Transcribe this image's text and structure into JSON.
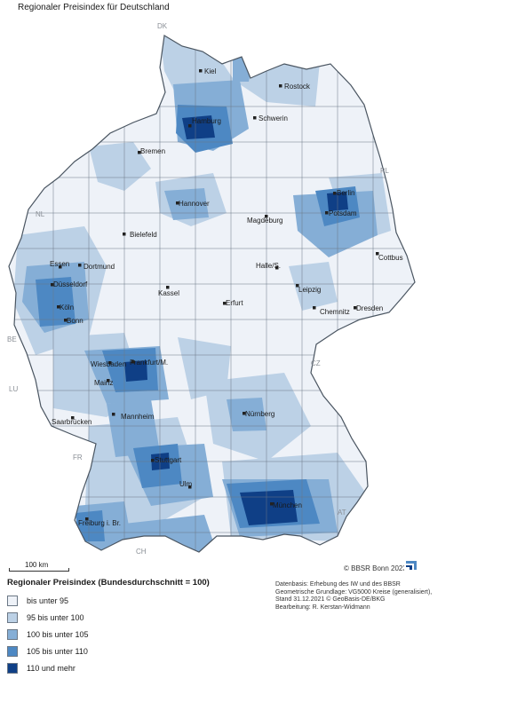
{
  "title": "Regionaler Preisindex für Deutschland",
  "colors": {
    "c1": "#eef2f8",
    "c2": "#bcd1e6",
    "c3": "#85aed6",
    "c4": "#4d88c3",
    "c5": "#0f3f86",
    "border": "#6b7785",
    "neighbor": "#8a8f96"
  },
  "countries": [
    "DK",
    "PL",
    "NL",
    "BE",
    "LU",
    "CZ",
    "FR",
    "AT",
    "CH"
  ],
  "cities": [
    "Kiel",
    "Rostock",
    "Hamburg",
    "Schwerin",
    "Bremen",
    "Berlin",
    "Hannover",
    "Potsdam",
    "Magdeburg",
    "Bielefeld",
    "Essen",
    "Dortmund",
    "Halle/S.",
    "Cottbus",
    "Düsseldorf",
    "Kassel",
    "Leipzig",
    "Köln",
    "Erfurt",
    "Chemnitz",
    "Dresden",
    "Bonn",
    "Wiesbaden",
    "Frankfurt/M.",
    "Mainz",
    "Saarbrücken",
    "Mannheim",
    "Nürnberg",
    "Stuttgart",
    "Ulm",
    "München",
    "Freiburg i. Br."
  ],
  "scale": {
    "label": "100 km"
  },
  "legend": {
    "title": "Regionaler Preisindex (Bundesdurchschnitt = 100)",
    "items": [
      {
        "label": "bis unter 95",
        "color": "#eef2f8"
      },
      {
        "label": "95 bis unter 100",
        "color": "#bcd1e6"
      },
      {
        "label": "100 bis unter 105",
        "color": "#85aed6"
      },
      {
        "label": "105 bis unter 110",
        "color": "#4d88c3"
      },
      {
        "label": "110 und mehr",
        "color": "#0f3f86"
      }
    ]
  },
  "copyright": "© BBSR Bonn 2023",
  "source": {
    "line1": "Datenbasis: Erhebung des IW und des BBSR",
    "line2": "Geometrische Grundlage: VG5000 Kreise (generalisiert),",
    "line3": "Stand 31.12.2021 © GeoBasis-DE/BKG",
    "line4": "Bearbeitung: R. Kerstan-Widmann"
  }
}
